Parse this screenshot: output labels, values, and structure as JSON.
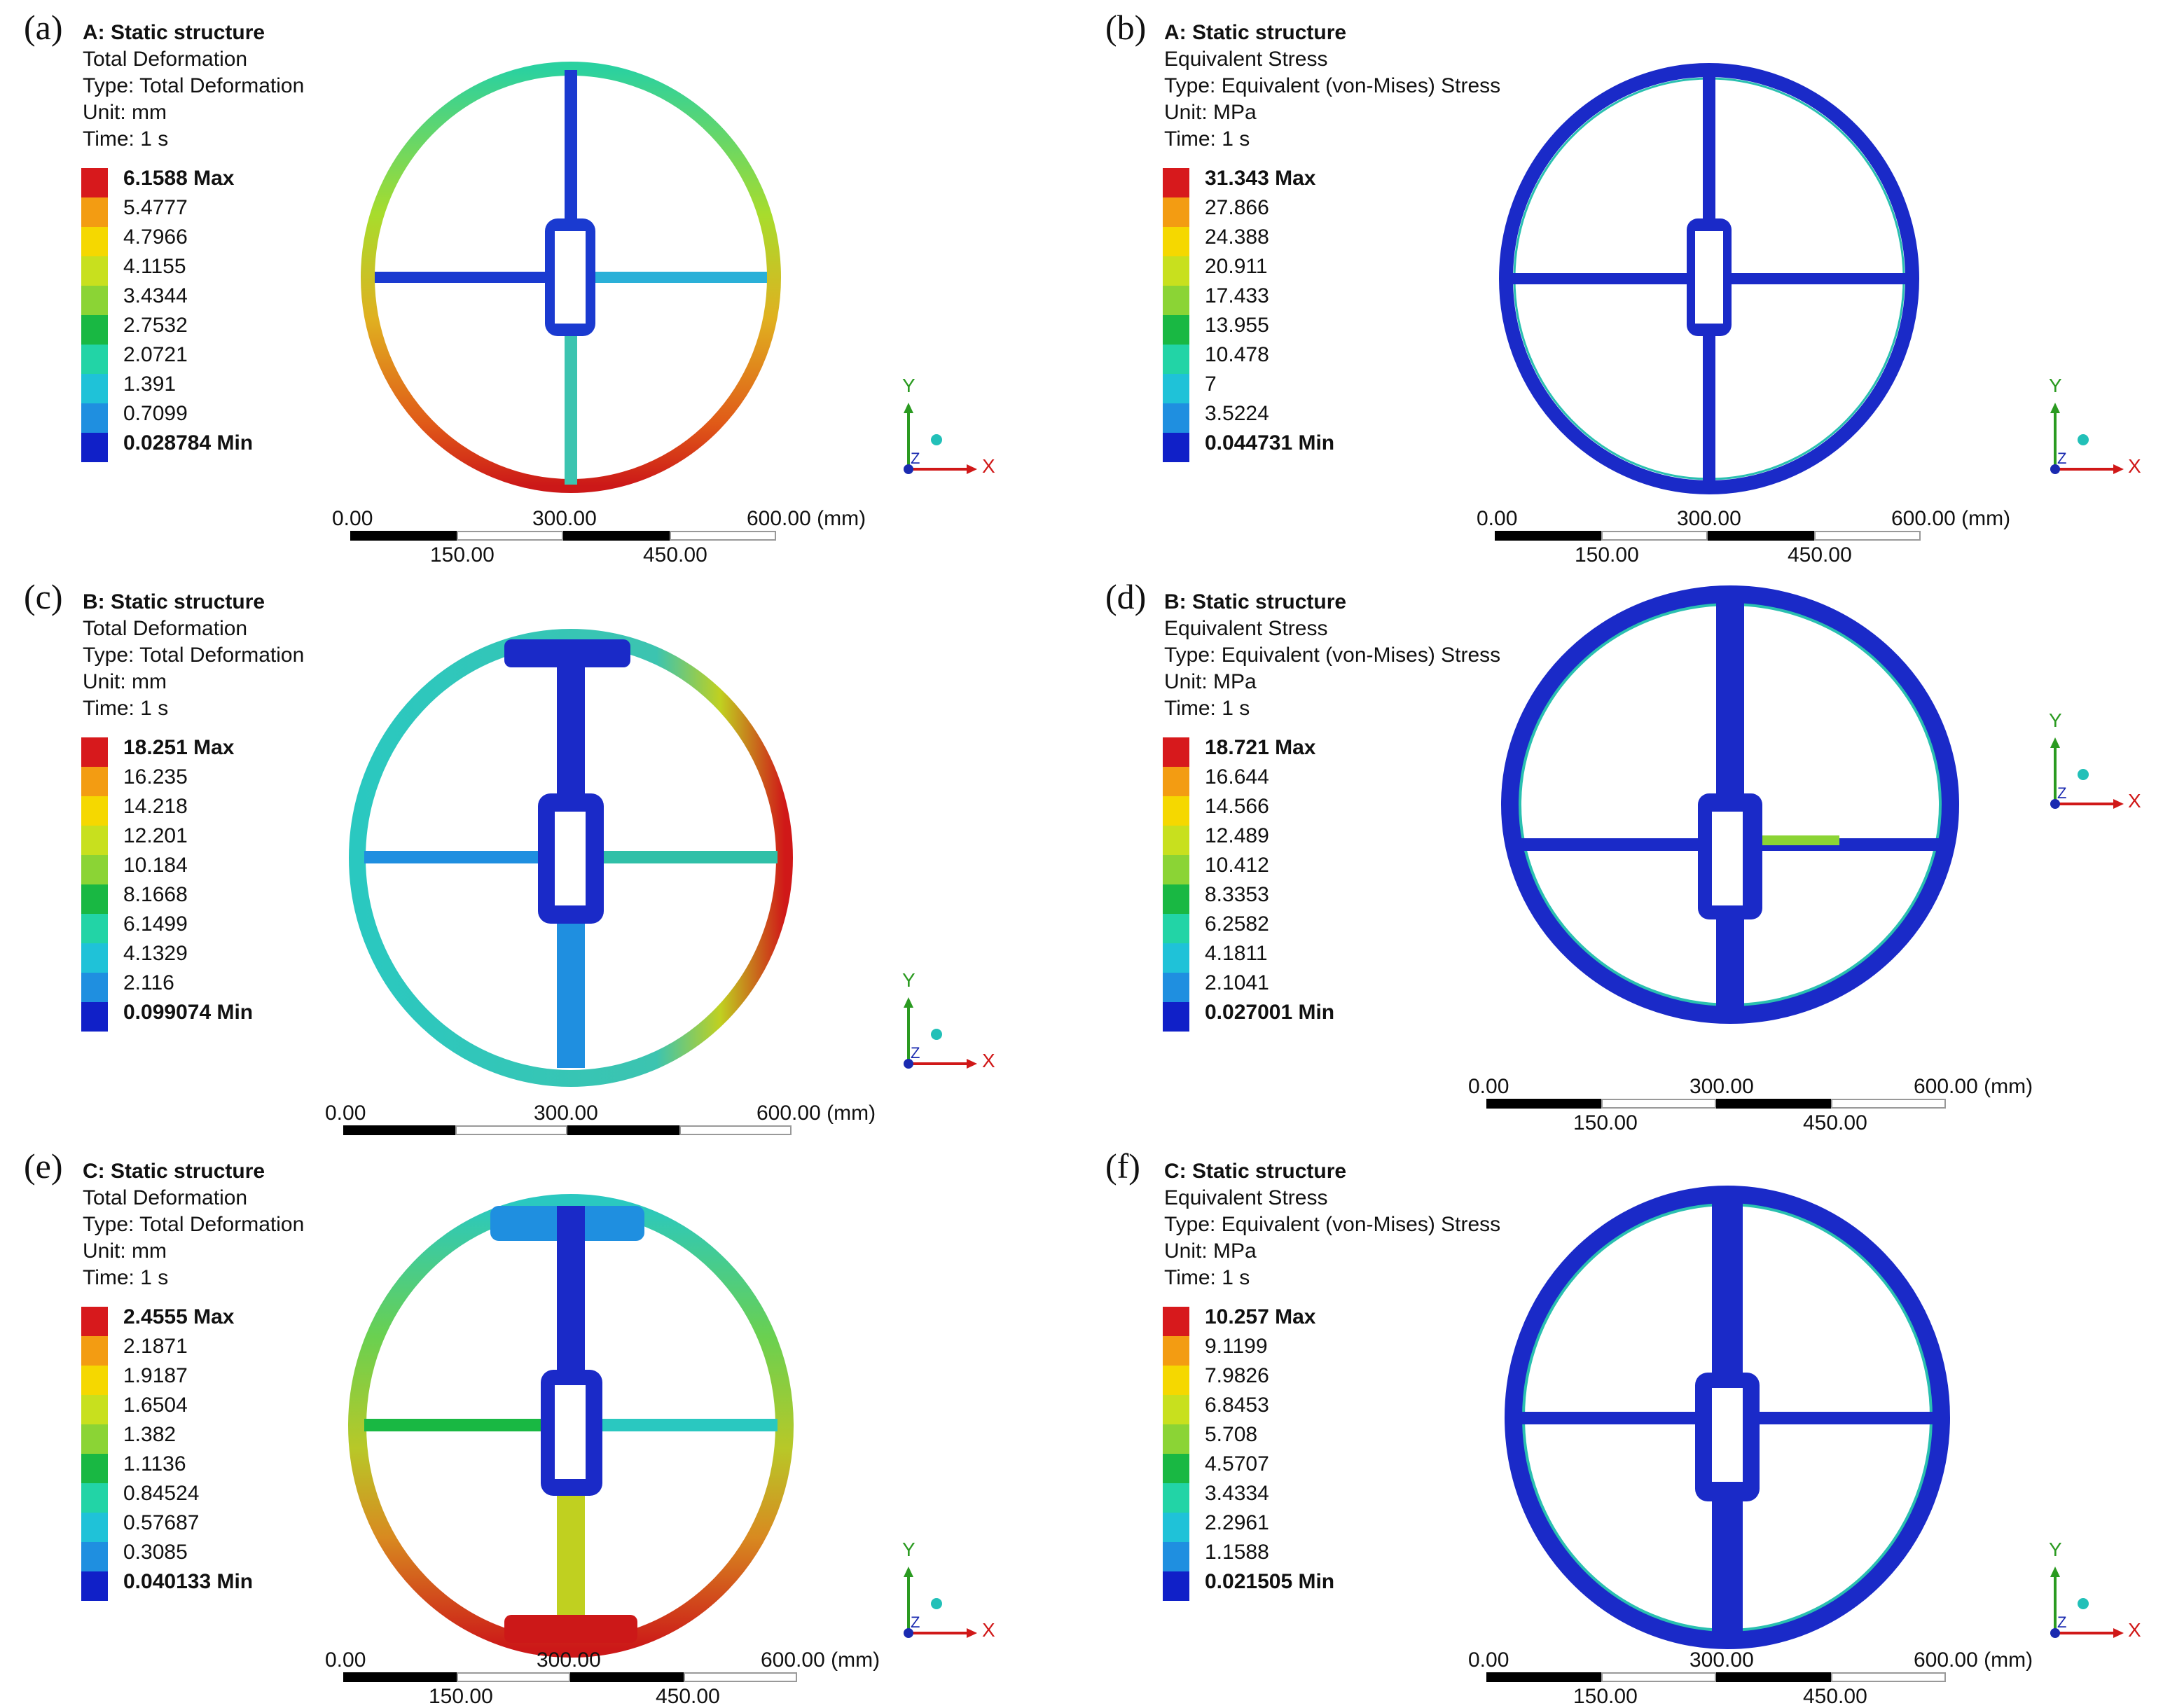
{
  "panels": [
    {
      "label": "(a)",
      "title": "A: Static structure",
      "lines": [
        "Total Deformation",
        "Type: Total Deformation",
        "Unit: mm",
        "Time: 1 s"
      ],
      "legend": [
        "6.1588 Max",
        "5.4777",
        "4.7966",
        "4.1155",
        "3.4344",
        "2.7532",
        "2.0721",
        "1.391",
        "0.7099",
        "0.028784 Min"
      ]
    },
    {
      "label": "(b)",
      "title": "A: Static structure",
      "lines": [
        "Equivalent Stress",
        "Type: Equivalent (von-Mises) Stress",
        "Unit: MPa",
        "Time: 1 s"
      ],
      "legend": [
        "31.343 Max",
        "27.866",
        "24.388",
        "20.911",
        "17.433",
        "13.955",
        "10.478",
        "7",
        "3.5224",
        "0.044731 Min"
      ]
    },
    {
      "label": "(c)",
      "title": "B: Static structure",
      "lines": [
        "Total Deformation",
        "Type: Total Deformation",
        "Unit: mm",
        "Time: 1 s"
      ],
      "legend": [
        "18.251 Max",
        "16.235",
        "14.218",
        "12.201",
        "10.184",
        "8.1668",
        "6.1499",
        "4.1329",
        "2.116",
        "0.099074 Min"
      ]
    },
    {
      "label": "(d)",
      "title": "B: Static structure",
      "lines": [
        "Equivalent Stress",
        "Type: Equivalent (von-Mises) Stress",
        "Unit: MPa",
        "Time: 1 s"
      ],
      "legend": [
        "18.721 Max",
        "16.644",
        "14.566",
        "12.489",
        "10.412",
        "8.3353",
        "6.2582",
        "4.1811",
        "2.1041",
        "0.027001 Min"
      ]
    },
    {
      "label": "(e)",
      "title": "C: Static structure",
      "lines": [
        "Total Deformation",
        "Type: Total Deformation",
        "Unit: mm",
        "Time: 1 s"
      ],
      "legend": [
        "2.4555 Max",
        "2.1871",
        "1.9187",
        "1.6504",
        "1.382",
        "1.1136",
        "0.84524",
        "0.57687",
        "0.3085",
        "0.040133 Min"
      ]
    },
    {
      "label": "(f)",
      "title": "C: Static structure",
      "lines": [
        "Equivalent Stress",
        "Type: Equivalent (von-Mises) Stress",
        "Unit: MPa",
        "Time: 1 s"
      ],
      "legend": [
        "10.257 Max",
        "9.1199",
        "7.9826",
        "6.8453",
        "5.708",
        "4.5707",
        "3.4334",
        "2.2961",
        "1.1588",
        "0.021505 Min"
      ]
    }
  ],
  "scale": {
    "s0": "0.00",
    "s1": "150.00",
    "s2": "300.00",
    "s3": "450.00",
    "s4": "600.00 (mm)"
  },
  "axis": {
    "x": "X",
    "y": "Y",
    "z": "Z"
  },
  "legend_colors": [
    "#d7191c",
    "#f39c12",
    "#f5d800",
    "#c8e01e",
    "#8bd435",
    "#19b843",
    "#22d4a6",
    "#1fc2d8",
    "#1f8fe0",
    "#1020c8"
  ]
}
